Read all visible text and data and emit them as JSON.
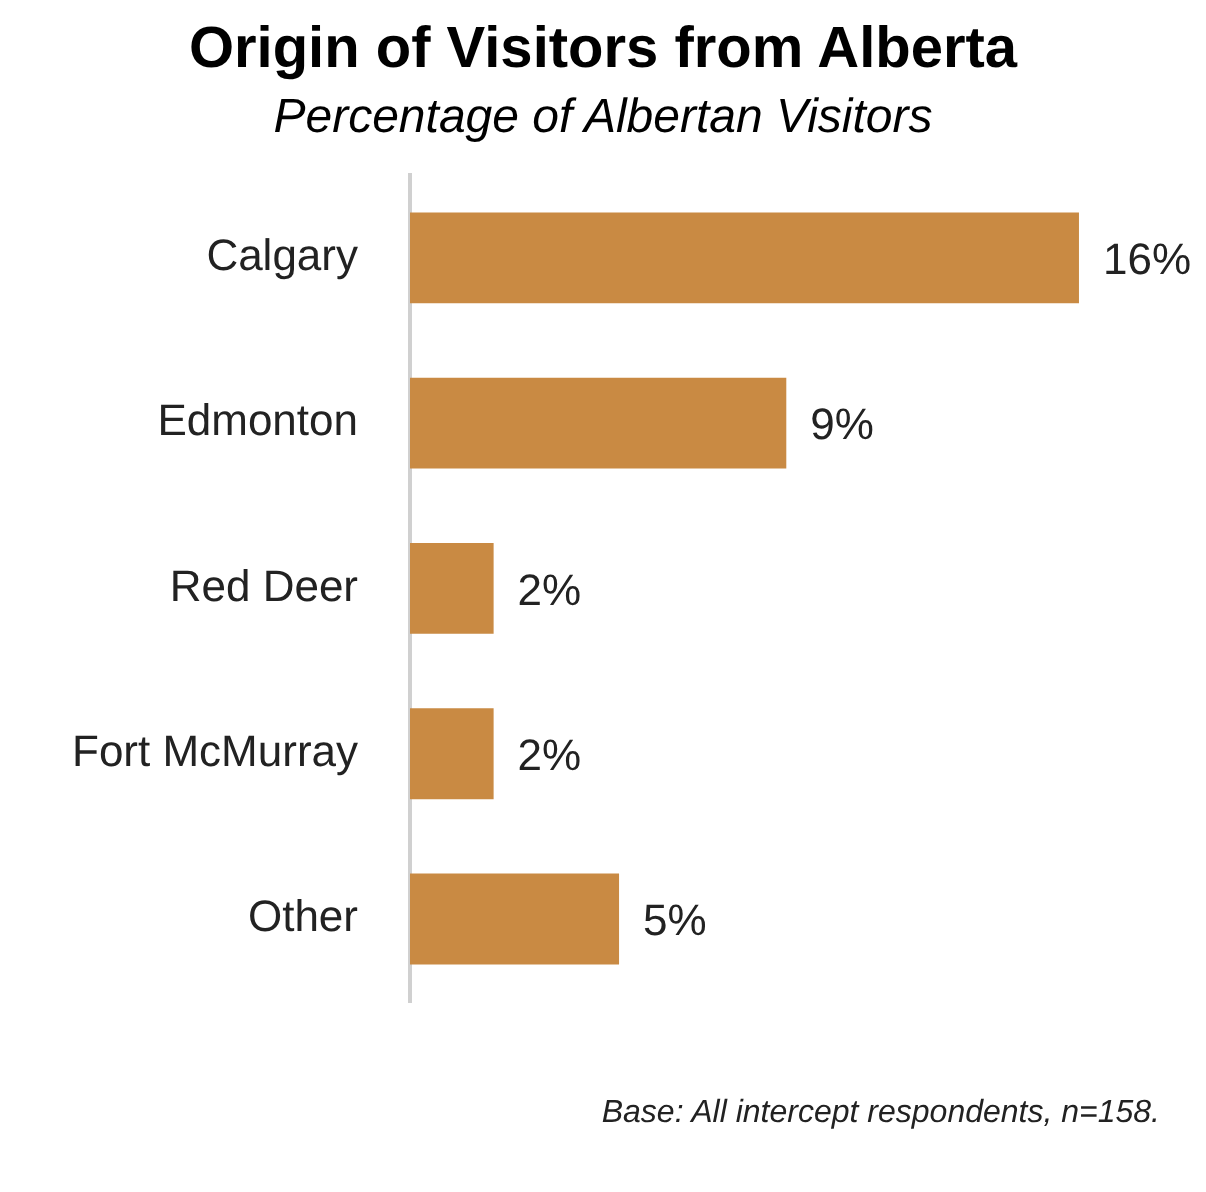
{
  "chart_data": {
    "type": "bar",
    "orientation": "horizontal",
    "title": "Origin of Visitors from Alberta",
    "subtitle": "Percentage of Albertan Visitors",
    "categories": [
      "Calgary",
      "Edmonton",
      "Red Deer",
      "Fort McMurray",
      "Other"
    ],
    "values": [
      16,
      9,
      2,
      2,
      5
    ],
    "color": "#c98a43",
    "data_labels": true,
    "value_labels": [
      "16%",
      "9%",
      "2%",
      "2%",
      "5%"
    ],
    "annotations": [
      "Base: All intercept respondents, n=158."
    ]
  }
}
